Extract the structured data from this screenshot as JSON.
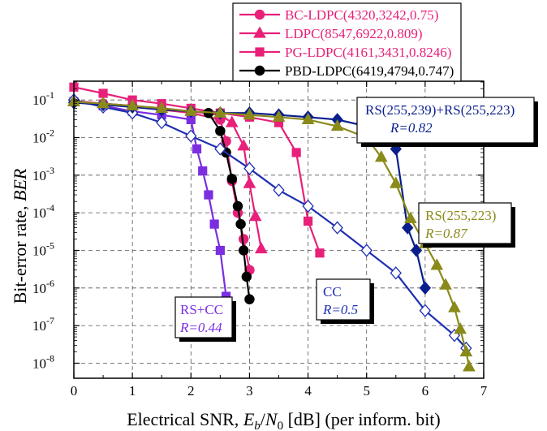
{
  "chart_data": {
    "type": "line",
    "xlabel_parts": [
      "Electrical SNR, ",
      "E",
      "b",
      "/",
      "N",
      "0",
      " [dB] (per inform. bit)"
    ],
    "ylabel_parts": [
      "Bit-error rate, ",
      "BER"
    ],
    "xlim": [
      0,
      7
    ],
    "ylim_exp": [
      -8.4,
      -0.5
    ],
    "y_scale": "log",
    "grid": true,
    "x_ticks": [
      "0",
      "1",
      "2",
      "3",
      "4",
      "5",
      "6",
      "7"
    ],
    "y_ticks": [
      {
        "base": "10",
        "exp": "-1",
        "v": -1
      },
      {
        "base": "10",
        "exp": "-2",
        "v": -2
      },
      {
        "base": "10",
        "exp": "-3",
        "v": -3
      },
      {
        "base": "10",
        "exp": "-4",
        "v": -4
      },
      {
        "base": "10",
        "exp": "-5",
        "v": -5
      },
      {
        "base": "10",
        "exp": "-6",
        "v": -6
      },
      {
        "base": "10",
        "exp": "-7",
        "v": -7
      },
      {
        "base": "10",
        "exp": "-8",
        "v": -8
      }
    ],
    "legend_position": "top-right, outside plot",
    "series": [
      {
        "name": "BC-LDPC(4320,3242,0.75)",
        "in_legend": true,
        "color": "#e8207a",
        "marker": "circle",
        "filled": true,
        "x": [
          0,
          0.5,
          1,
          1.5,
          2,
          2.5,
          2.6,
          2.7,
          2.8,
          2.9,
          3.0
        ],
        "y": [
          0.095,
          0.08,
          0.07,
          0.055,
          0.045,
          0.03,
          0.008,
          0.0007,
          0.0001,
          2e-05,
          3e-06
        ]
      },
      {
        "name": "LDPC(8547,6922,0.809)",
        "in_legend": true,
        "color": "#e8207a",
        "marker": "triangle",
        "filled": true,
        "x": [
          0,
          0.5,
          1,
          1.5,
          2,
          2.5,
          2.7,
          2.9,
          3.0,
          3.1,
          3.2
        ],
        "y": [
          0.09,
          0.08,
          0.07,
          0.06,
          0.05,
          0.04,
          0.025,
          0.006,
          0.0006,
          8e-05,
          1.1e-05
        ]
      },
      {
        "name": "PG-LDPC(4161,3431,0.8246)",
        "in_legend": true,
        "color": "#e8207a",
        "marker": "square",
        "filled": true,
        "x": [
          0,
          0.5,
          1,
          1.5,
          2,
          2.5,
          3,
          3.5,
          3.8,
          4.0,
          4.2
        ],
        "y": [
          0.22,
          0.15,
          0.1,
          0.08,
          0.06,
          0.045,
          0.035,
          0.025,
          0.004,
          6e-05,
          8.5e-06
        ]
      },
      {
        "name": "PBD-LDPC(6419,4794,0.747)",
        "in_legend": true,
        "color": "#000000",
        "marker": "circle",
        "filled": true,
        "x": [
          2.3,
          2.5,
          2.6,
          2.7,
          2.8,
          2.85,
          2.9,
          2.95,
          3.0
        ],
        "y": [
          0.045,
          0.015,
          0.004,
          0.0008,
          0.00015,
          5e-05,
          1e-05,
          2e-06,
          5e-07
        ]
      },
      {
        "name": "",
        "in_legend": false,
        "color": "#7b2ee0",
        "marker": "square",
        "filled": true,
        "x": [
          0,
          0.5,
          1,
          1.5,
          2.0,
          2.1,
          2.2,
          2.3,
          2.4,
          2.5,
          2.6
        ],
        "y": [
          0.09,
          0.07,
          0.05,
          0.04,
          0.03,
          0.005,
          0.0013,
          0.0003,
          5e-05,
          1e-05,
          6e-07
        ]
      },
      {
        "name": "",
        "in_legend": false,
        "color": "#1e2fb0",
        "marker": "diamond",
        "filled": false,
        "x": [
          0,
          0.5,
          1,
          1.5,
          2,
          2.5,
          3,
          3.5,
          4,
          4.5,
          5,
          5.5,
          6,
          6.5,
          6.7
        ],
        "y": [
          0.1,
          0.065,
          0.045,
          0.025,
          0.011,
          0.005,
          0.0015,
          0.0004,
          0.00015,
          4e-05,
          1e-05,
          2.5e-06,
          2.5e-07,
          5.5e-08,
          2.5e-08
        ]
      },
      {
        "name": "",
        "in_legend": false,
        "color": "#0a1f8c",
        "marker": "diamond",
        "filled": true,
        "x": [
          0,
          0.5,
          1,
          1.5,
          2,
          2.5,
          3,
          3.5,
          4,
          4.5,
          5,
          5.25,
          5.5,
          5.7,
          5.85,
          6.0
        ],
        "y": [
          0.085,
          0.075,
          0.065,
          0.055,
          0.05,
          0.045,
          0.045,
          0.04,
          0.035,
          0.03,
          0.02,
          0.012,
          0.005,
          4e-05,
          1e-05,
          1e-06
        ]
      },
      {
        "name": "",
        "in_legend": false,
        "color": "#8a8a1a",
        "marker": "triangle",
        "filled": true,
        "x": [
          0,
          0.5,
          1,
          1.5,
          2,
          2.5,
          3,
          3.5,
          4,
          4.5,
          5,
          5.25,
          5.5,
          5.75,
          6.0,
          6.2,
          6.35,
          6.5,
          6.6,
          6.7,
          6.75
        ],
        "y": [
          0.09,
          0.08,
          0.07,
          0.06,
          0.05,
          0.045,
          0.04,
          0.035,
          0.03,
          0.02,
          0.01,
          0.003,
          0.0006,
          7e-05,
          1.5e-05,
          4e-06,
          1.2e-06,
          3e-07,
          8e-08,
          2e-08,
          8e-09
        ]
      }
    ],
    "annotations": [
      {
        "lines": [
          "RS(255,239)+RS(255,223)",
          "R=0.82"
        ],
        "color": "#0a1f8c",
        "position": "upper-right"
      },
      {
        "lines": [
          "RS(255,223)",
          "R=0.87"
        ],
        "color": "#8a8a1a",
        "position": "right"
      },
      {
        "lines": [
          "CC",
          "R=0.5"
        ],
        "color": "#1e2fb0",
        "position": "lower-middle"
      },
      {
        "lines": [
          "RS+CC",
          "R=0.44"
        ],
        "color": "#7b2ee0",
        "position": "lower-left"
      }
    ]
  }
}
